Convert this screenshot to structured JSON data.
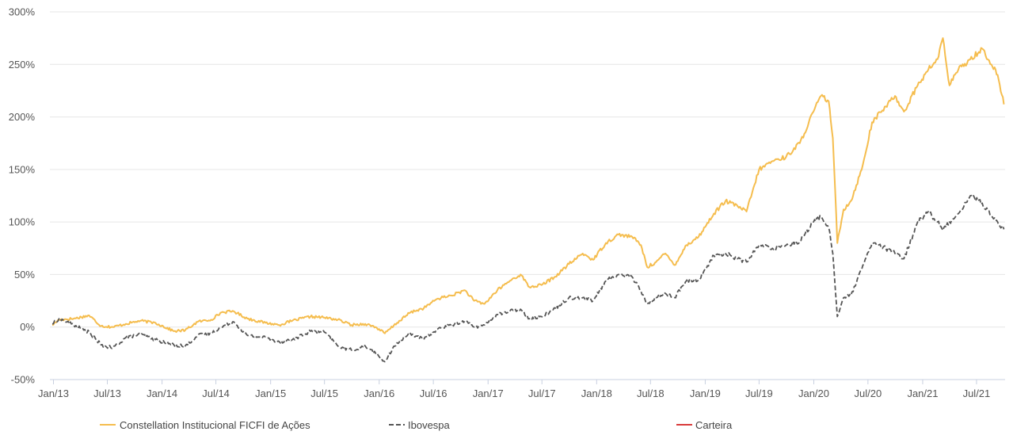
{
  "chart_data": {
    "type": "line",
    "title": "",
    "xlabel": "",
    "ylabel": "",
    "y_tick_labels": [
      "300%",
      "250%",
      "200%",
      "150%",
      "100%",
      "50%",
      "0%",
      "-50%"
    ],
    "y_ticks": [
      300,
      250,
      200,
      150,
      100,
      50,
      0,
      -50
    ],
    "ylim": [
      -50,
      300
    ],
    "x_tick_labels": [
      "Jan/13",
      "Jul/13",
      "Jan/14",
      "Jul/14",
      "Jan/15",
      "Jul/15",
      "Jan/16",
      "Jul/16",
      "Jan/17",
      "Jul/17",
      "Jan/18",
      "Jul/18",
      "Jan/19",
      "Jul/19",
      "Jan/20",
      "Jul/20",
      "Jan/21",
      "Jul/21"
    ],
    "x_ticks": [
      "2013-01-01",
      "2013-07-01",
      "2014-01-01",
      "2014-07-01",
      "2015-01-01",
      "2015-07-01",
      "2016-01-01",
      "2016-07-01",
      "2017-01-01",
      "2017-07-01",
      "2018-01-01",
      "2018-07-01",
      "2019-01-01",
      "2019-07-01",
      "2020-01-01",
      "2020-07-01",
      "2021-01-01",
      "2021-07-01"
    ],
    "xlim": [
      "2012-12-20",
      "2021-10-05"
    ],
    "grid": true,
    "legend_position": "bottom",
    "series": [
      {
        "name": "Constellation Institucional FICFI de Ações",
        "color": "#f5bd4e",
        "style": "solid",
        "points": [
          [
            "2012-12-28",
            2
          ],
          [
            "2013-01-20",
            7
          ],
          [
            "2013-03-10",
            8
          ],
          [
            "2013-05-01",
            11
          ],
          [
            "2013-06-10",
            1
          ],
          [
            "2013-07-20",
            0
          ],
          [
            "2013-09-01",
            3
          ],
          [
            "2013-10-20",
            6
          ],
          [
            "2013-12-10",
            4
          ],
          [
            "2014-02-10",
            -4
          ],
          [
            "2014-03-20",
            -3
          ],
          [
            "2014-05-01",
            5
          ],
          [
            "2014-06-15",
            7
          ],
          [
            "2014-07-20",
            14
          ],
          [
            "2014-08-30",
            15
          ],
          [
            "2014-10-15",
            8
          ],
          [
            "2014-12-15",
            4
          ],
          [
            "2015-01-30",
            2
          ],
          [
            "2015-03-15",
            6
          ],
          [
            "2015-05-15",
            10
          ],
          [
            "2015-07-01",
            9
          ],
          [
            "2015-08-15",
            7
          ],
          [
            "2015-09-30",
            2
          ],
          [
            "2015-11-15",
            3
          ],
          [
            "2015-12-20",
            0
          ],
          [
            "2016-01-20",
            -6
          ],
          [
            "2016-03-01",
            4
          ],
          [
            "2016-04-15",
            14
          ],
          [
            "2016-05-30",
            18
          ],
          [
            "2016-07-15",
            27
          ],
          [
            "2016-08-30",
            30
          ],
          [
            "2016-10-15",
            35
          ],
          [
            "2016-11-15",
            25
          ],
          [
            "2016-12-20",
            22
          ],
          [
            "2017-02-01",
            35
          ],
          [
            "2017-03-15",
            44
          ],
          [
            "2017-04-20",
            50
          ],
          [
            "2017-05-20",
            38
          ],
          [
            "2017-06-30",
            40
          ],
          [
            "2017-08-15",
            48
          ],
          [
            "2017-09-30",
            60
          ],
          [
            "2017-11-15",
            70
          ],
          [
            "2017-12-20",
            64
          ],
          [
            "2018-02-01",
            80
          ],
          [
            "2018-03-15",
            88
          ],
          [
            "2018-04-30",
            86
          ],
          [
            "2018-05-30",
            78
          ],
          [
            "2018-06-20",
            57
          ],
          [
            "2018-07-20",
            62
          ],
          [
            "2018-08-20",
            70
          ],
          [
            "2018-09-20",
            59
          ],
          [
            "2018-10-30",
            78
          ],
          [
            "2018-12-10",
            86
          ],
          [
            "2019-01-30",
            108
          ],
          [
            "2019-03-10",
            120
          ],
          [
            "2019-04-20",
            115
          ],
          [
            "2019-05-20",
            110
          ],
          [
            "2019-07-01",
            150
          ],
          [
            "2019-08-15",
            158
          ],
          [
            "2019-09-30",
            162
          ],
          [
            "2019-11-15",
            175
          ],
          [
            "2019-12-31",
            205
          ],
          [
            "2020-01-25",
            220
          ],
          [
            "2020-02-20",
            215
          ],
          [
            "2020-03-05",
            180
          ],
          [
            "2020-03-20",
            80
          ],
          [
            "2020-04-10",
            112
          ],
          [
            "2020-05-05",
            120
          ],
          [
            "2020-06-10",
            150
          ],
          [
            "2020-07-15",
            195
          ],
          [
            "2020-08-30",
            210
          ],
          [
            "2020-09-30",
            220
          ],
          [
            "2020-10-30",
            205
          ],
          [
            "2020-12-15",
            230
          ],
          [
            "2021-01-20",
            245
          ],
          [
            "2021-02-20",
            255
          ],
          [
            "2021-03-10",
            275
          ],
          [
            "2021-04-01",
            230
          ],
          [
            "2021-05-01",
            245
          ],
          [
            "2021-06-10",
            255
          ],
          [
            "2021-07-20",
            265
          ],
          [
            "2021-08-20",
            250
          ],
          [
            "2021-09-10",
            240
          ],
          [
            "2021-10-01",
            212
          ]
        ]
      },
      {
        "name": "Ibovespa",
        "color": "#555555",
        "style": "dashed",
        "points": [
          [
            "2012-12-28",
            3
          ],
          [
            "2013-01-20",
            8
          ],
          [
            "2013-03-10",
            2
          ],
          [
            "2013-05-01",
            -5
          ],
          [
            "2013-06-10",
            -17
          ],
          [
            "2013-07-20",
            -20
          ],
          [
            "2013-09-01",
            -10
          ],
          [
            "2013-10-20",
            -7
          ],
          [
            "2013-12-10",
            -12
          ],
          [
            "2014-02-10",
            -17
          ],
          [
            "2014-03-20",
            -18
          ],
          [
            "2014-05-01",
            -8
          ],
          [
            "2014-06-15",
            -6
          ],
          [
            "2014-07-20",
            0
          ],
          [
            "2014-08-30",
            5
          ],
          [
            "2014-10-15",
            -8
          ],
          [
            "2014-12-15",
            -10
          ],
          [
            "2015-01-30",
            -14
          ],
          [
            "2015-03-15",
            -12
          ],
          [
            "2015-05-15",
            -4
          ],
          [
            "2015-07-01",
            -5
          ],
          [
            "2015-08-15",
            -18
          ],
          [
            "2015-09-30",
            -22
          ],
          [
            "2015-11-15",
            -18
          ],
          [
            "2015-12-20",
            -25
          ],
          [
            "2016-01-20",
            -33
          ],
          [
            "2016-03-01",
            -15
          ],
          [
            "2016-04-15",
            -6
          ],
          [
            "2016-05-30",
            -12
          ],
          [
            "2016-07-15",
            -2
          ],
          [
            "2016-08-30",
            2
          ],
          [
            "2016-10-15",
            6
          ],
          [
            "2016-11-15",
            0
          ],
          [
            "2016-12-20",
            2
          ],
          [
            "2017-02-01",
            12
          ],
          [
            "2017-03-15",
            15
          ],
          [
            "2017-04-20",
            17
          ],
          [
            "2017-05-20",
            8
          ],
          [
            "2017-06-30",
            10
          ],
          [
            "2017-08-15",
            18
          ],
          [
            "2017-09-30",
            28
          ],
          [
            "2017-11-15",
            28
          ],
          [
            "2017-12-20",
            25
          ],
          [
            "2018-02-01",
            44
          ],
          [
            "2018-03-15",
            50
          ],
          [
            "2018-04-30",
            48
          ],
          [
            "2018-05-30",
            34
          ],
          [
            "2018-06-20",
            22
          ],
          [
            "2018-07-20",
            28
          ],
          [
            "2018-08-20",
            32
          ],
          [
            "2018-09-20",
            28
          ],
          [
            "2018-10-30",
            44
          ],
          [
            "2018-12-10",
            45
          ],
          [
            "2019-01-30",
            68
          ],
          [
            "2019-03-10",
            70
          ],
          [
            "2019-04-20",
            65
          ],
          [
            "2019-05-20",
            62
          ],
          [
            "2019-07-01",
            78
          ],
          [
            "2019-08-15",
            75
          ],
          [
            "2019-09-30",
            78
          ],
          [
            "2019-11-15",
            82
          ],
          [
            "2019-12-31",
            100
          ],
          [
            "2020-01-25",
            105
          ],
          [
            "2020-02-20",
            95
          ],
          [
            "2020-03-05",
            70
          ],
          [
            "2020-03-20",
            10
          ],
          [
            "2020-04-10",
            28
          ],
          [
            "2020-05-05",
            30
          ],
          [
            "2020-06-10",
            55
          ],
          [
            "2020-07-15",
            80
          ],
          [
            "2020-08-30",
            75
          ],
          [
            "2020-09-30",
            70
          ],
          [
            "2020-10-30",
            65
          ],
          [
            "2020-12-15",
            100
          ],
          [
            "2021-01-20",
            110
          ],
          [
            "2021-02-20",
            100
          ],
          [
            "2021-03-10",
            92
          ],
          [
            "2021-04-01",
            100
          ],
          [
            "2021-05-01",
            108
          ],
          [
            "2021-06-10",
            125
          ],
          [
            "2021-07-20",
            118
          ],
          [
            "2021-08-20",
            105
          ],
          [
            "2021-09-10",
            100
          ],
          [
            "2021-10-01",
            93
          ]
        ]
      },
      {
        "name": "Carteira",
        "color": "#d93a3a",
        "style": "solid",
        "points": []
      }
    ]
  }
}
